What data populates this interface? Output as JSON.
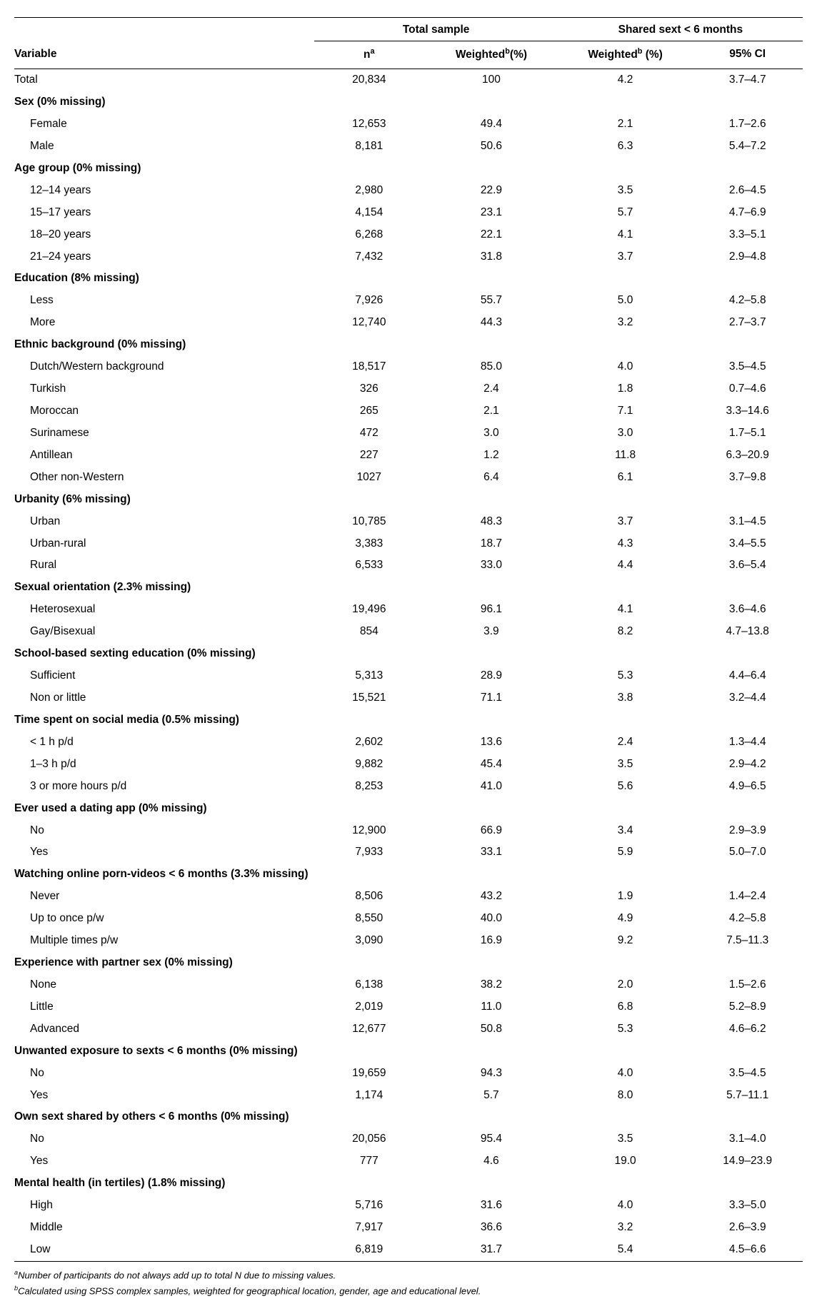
{
  "headers": {
    "group_total": "Total sample",
    "group_shared": "Shared sext < 6 months",
    "variable": "Variable",
    "n": "n",
    "n_sup": "a",
    "weighted": "Weighted",
    "weighted_sup": "b",
    "weighted_unit1": "(%)",
    "weighted_unit2": " (%)",
    "ci": "95% CI"
  },
  "rows": [
    {
      "type": "data",
      "var": "Total",
      "n": "20,834",
      "wt": "100",
      "wt2": "4.2",
      "ci": "3.7–4.7"
    },
    {
      "type": "section",
      "var": "Sex (0% missing)"
    },
    {
      "type": "indent",
      "var": "Female",
      "n": "12,653",
      "wt": "49.4",
      "wt2": "2.1",
      "ci": "1.7–2.6"
    },
    {
      "type": "indent",
      "var": "Male",
      "n": "8,181",
      "wt": "50.6",
      "wt2": "6.3",
      "ci": "5.4–7.2"
    },
    {
      "type": "section",
      "var": "Age group (0% missing)"
    },
    {
      "type": "indent",
      "var": "12–14 years",
      "n": "2,980",
      "wt": "22.9",
      "wt2": "3.5",
      "ci": "2.6–4.5"
    },
    {
      "type": "indent",
      "var": "15–17 years",
      "n": "4,154",
      "wt": "23.1",
      "wt2": "5.7",
      "ci": "4.7–6.9"
    },
    {
      "type": "indent",
      "var": "18–20 years",
      "n": "6,268",
      "wt": "22.1",
      "wt2": "4.1",
      "ci": "3.3–5.1"
    },
    {
      "type": "indent",
      "var": "21–24 years",
      "n": "7,432",
      "wt": "31.8",
      "wt2": "3.7",
      "ci": "2.9–4.8"
    },
    {
      "type": "section",
      "var": "Education (8% missing)"
    },
    {
      "type": "indent",
      "var": "Less",
      "n": "7,926",
      "wt": "55.7",
      "wt2": "5.0",
      "ci": "4.2–5.8"
    },
    {
      "type": "indent",
      "var": "More",
      "n": "12,740",
      "wt": "44.3",
      "wt2": "3.2",
      "ci": "2.7–3.7"
    },
    {
      "type": "section",
      "var": "Ethnic background (0% missing)"
    },
    {
      "type": "indent",
      "var": "Dutch/Western background",
      "n": "18,517",
      "wt": "85.0",
      "wt2": "4.0",
      "ci": "3.5–4.5"
    },
    {
      "type": "indent",
      "var": "Turkish",
      "n": "326",
      "wt": "2.4",
      "wt2": "1.8",
      "ci": "0.7–4.6"
    },
    {
      "type": "indent",
      "var": "Moroccan",
      "n": "265",
      "wt": "2.1",
      "wt2": "7.1",
      "ci": "3.3–14.6"
    },
    {
      "type": "indent",
      "var": "Surinamese",
      "n": "472",
      "wt": "3.0",
      "wt2": "3.0",
      "ci": "1.7–5.1"
    },
    {
      "type": "indent",
      "var": "Antillean",
      "n": "227",
      "wt": "1.2",
      "wt2": "11.8",
      "ci": "6.3–20.9"
    },
    {
      "type": "indent",
      "var": "Other non-Western",
      "n": "1027",
      "wt": "6.4",
      "wt2": "6.1",
      "ci": "3.7–9.8"
    },
    {
      "type": "section",
      "var": "Urbanity (6% missing)"
    },
    {
      "type": "indent",
      "var": "Urban",
      "n": "10,785",
      "wt": "48.3",
      "wt2": "3.7",
      "ci": "3.1–4.5"
    },
    {
      "type": "indent",
      "var": "Urban-rural",
      "n": "3,383",
      "wt": "18.7",
      "wt2": "4.3",
      "ci": "3.4–5.5"
    },
    {
      "type": "indent",
      "var": "Rural",
      "n": "6,533",
      "wt": "33.0",
      "wt2": "4.4",
      "ci": "3.6–5.4"
    },
    {
      "type": "section",
      "var": "Sexual orientation (2.3% missing)"
    },
    {
      "type": "indent",
      "var": "Heterosexual",
      "n": "19,496",
      "wt": "96.1",
      "wt2": "4.1",
      "ci": "3.6–4.6"
    },
    {
      "type": "indent",
      "var": "Gay/Bisexual",
      "n": "854",
      "wt": "3.9",
      "wt2": "8.2",
      "ci": "4.7–13.8"
    },
    {
      "type": "section",
      "var": "School-based sexting education (0% missing)"
    },
    {
      "type": "indent",
      "var": "Sufficient",
      "n": "5,313",
      "wt": "28.9",
      "wt2": "5.3",
      "ci": "4.4–6.4"
    },
    {
      "type": "indent",
      "var": "Non or little",
      "n": "15,521",
      "wt": "71.1",
      "wt2": "3.8",
      "ci": "3.2–4.4"
    },
    {
      "type": "section",
      "var": "Time spent on social media (0.5% missing)"
    },
    {
      "type": "indent",
      "var": "< 1 h p/d",
      "n": "2,602",
      "wt": "13.6",
      "wt2": "2.4",
      "ci": "1.3–4.4"
    },
    {
      "type": "indent",
      "var": "1–3 h p/d",
      "n": "9,882",
      "wt": "45.4",
      "wt2": "3.5",
      "ci": "2.9–4.2"
    },
    {
      "type": "indent",
      "var": "3 or more hours p/d",
      "n": "8,253",
      "wt": "41.0",
      "wt2": "5.6",
      "ci": "4.9–6.5"
    },
    {
      "type": "section",
      "var": "Ever used a dating app (0% missing)"
    },
    {
      "type": "indent",
      "var": "No",
      "n": "12,900",
      "wt": "66.9",
      "wt2": "3.4",
      "ci": "2.9–3.9"
    },
    {
      "type": "indent",
      "var": "Yes",
      "n": "7,933",
      "wt": "33.1",
      "wt2": "5.9",
      "ci": "5.0–7.0"
    },
    {
      "type": "section",
      "var": "Watching online porn-videos < 6 months (3.3% missing)"
    },
    {
      "type": "indent",
      "var": "Never",
      "n": "8,506",
      "wt": "43.2",
      "wt2": "1.9",
      "ci": "1.4–2.4"
    },
    {
      "type": "indent",
      "var": "Up to once p/w",
      "n": "8,550",
      "wt": "40.0",
      "wt2": "4.9",
      "ci": "4.2–5.8"
    },
    {
      "type": "indent",
      "var": "Multiple times p/w",
      "n": "3,090",
      "wt": "16.9",
      "wt2": "9.2",
      "ci": "7.5–11.3"
    },
    {
      "type": "section",
      "var": "Experience with partner sex (0% missing)"
    },
    {
      "type": "indent",
      "var": "None",
      "n": "6,138",
      "wt": "38.2",
      "wt2": "2.0",
      "ci": "1.5–2.6"
    },
    {
      "type": "indent",
      "var": "Little",
      "n": "2,019",
      "wt": "11.0",
      "wt2": "6.8",
      "ci": "5.2–8.9"
    },
    {
      "type": "indent",
      "var": "Advanced",
      "n": "12,677",
      "wt": "50.8",
      "wt2": "5.3",
      "ci": "4.6–6.2"
    },
    {
      "type": "section",
      "var": "Unwanted exposure to sexts < 6 months (0% missing)"
    },
    {
      "type": "indent",
      "var": "No",
      "n": "19,659",
      "wt": "94.3",
      "wt2": "4.0",
      "ci": "3.5–4.5"
    },
    {
      "type": "indent",
      "var": "Yes",
      "n": "1,174",
      "wt": "5.7",
      "wt2": "8.0",
      "ci": "5.7–11.1"
    },
    {
      "type": "section",
      "var": "Own sext shared by others < 6 months (0% missing)"
    },
    {
      "type": "indent",
      "var": "No",
      "n": "20,056",
      "wt": "95.4",
      "wt2": "3.5",
      "ci": "3.1–4.0"
    },
    {
      "type": "indent",
      "var": "Yes",
      "n": "777",
      "wt": "4.6",
      "wt2": "19.0",
      "ci": "14.9–23.9"
    },
    {
      "type": "section",
      "var": "Mental health (in tertiles) (1.8% missing)"
    },
    {
      "type": "indent",
      "var": "High",
      "n": "5,716",
      "wt": "31.6",
      "wt2": "4.0",
      "ci": "3.3–5.0"
    },
    {
      "type": "indent",
      "var": "Middle",
      "n": "7,917",
      "wt": "36.6",
      "wt2": "3.2",
      "ci": "2.6–3.9"
    },
    {
      "type": "indent",
      "var": "Low",
      "n": "6,819",
      "wt": "31.7",
      "wt2": "5.4",
      "ci": "4.5–6.6"
    }
  ],
  "footnotes": {
    "a": "Number of participants do not always add up to total N due to missing values.",
    "b": "Calculated using SPSS complex samples, weighted for geographical location, gender, age and educational level."
  }
}
